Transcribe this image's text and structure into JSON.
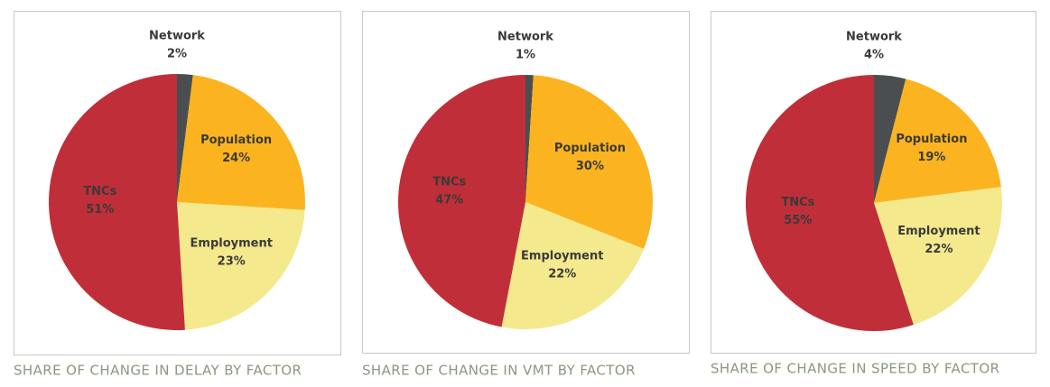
{
  "chart_data": [
    {
      "type": "pie",
      "title": "SHARE OF CHANGE IN DELAY BY FACTOR",
      "categories": [
        "Network",
        "Population",
        "Employment",
        "TNCs"
      ],
      "values": [
        2,
        24,
        23,
        51
      ],
      "value_labels": [
        "2%",
        "24%",
        "23%",
        "51%"
      ],
      "colors": [
        "#4b4e50",
        "#fbb41f",
        "#f4e98d",
        "#c02f39"
      ]
    },
    {
      "type": "pie",
      "title": "SHARE OF CHANGE IN VMT BY FACTOR",
      "categories": [
        "Network",
        "Population",
        "Employment",
        "TNCs"
      ],
      "values": [
        1,
        30,
        22,
        47
      ],
      "value_labels": [
        "1%",
        "30%",
        "22%",
        "47%"
      ],
      "colors": [
        "#4b4e50",
        "#fbb41f",
        "#f4e98d",
        "#c02f39"
      ]
    },
    {
      "type": "pie",
      "title": "SHARE OF CHANGE IN SPEED BY FACTOR",
      "categories": [
        "Network",
        "Population",
        "Employment",
        "TNCs"
      ],
      "values": [
        4,
        19,
        22,
        55
      ],
      "value_labels": [
        "4%",
        "19%",
        "22%",
        "55%"
      ],
      "colors": [
        "#4b4e50",
        "#fbb41f",
        "#f4e98d",
        "#c02f39"
      ]
    }
  ]
}
